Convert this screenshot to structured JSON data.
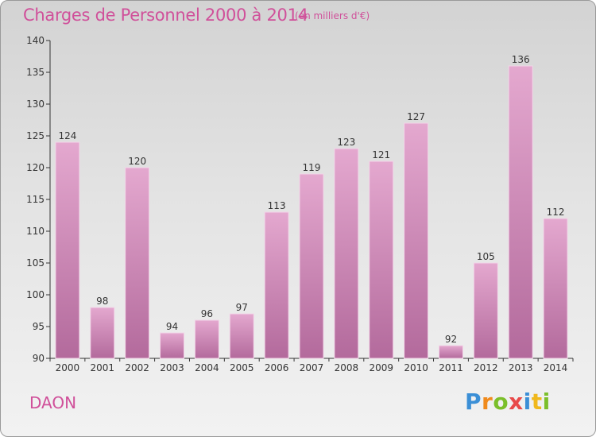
{
  "header": {
    "title": "Charges de Personnel 2000 à 2014",
    "subtitle": "(en milliers d'€)"
  },
  "footer": {
    "commune": "DAON",
    "logo_text": "Proxiti"
  },
  "colors": {
    "bar": "#d690bd",
    "bar_dark": "#b7679c",
    "title": "#d0509a",
    "axis": "#333333"
  },
  "chart_data": {
    "type": "bar",
    "title": "Charges de Personnel 2000 à 2014",
    "subtitle": "(en milliers d'€)",
    "xlabel": "",
    "ylabel": "",
    "categories": [
      "2000",
      "2001",
      "2002",
      "2003",
      "2004",
      "2005",
      "2006",
      "2007",
      "2008",
      "2009",
      "2010",
      "2011",
      "2012",
      "2013",
      "2014"
    ],
    "values": [
      124,
      98,
      120,
      94,
      96,
      97,
      113,
      119,
      123,
      121,
      127,
      92,
      105,
      136,
      112
    ],
    "ylim": [
      90,
      140
    ],
    "yticks": [
      90,
      95,
      100,
      105,
      110,
      115,
      120,
      125,
      130,
      135,
      140
    ],
    "grid": false,
    "data_labels": true
  }
}
